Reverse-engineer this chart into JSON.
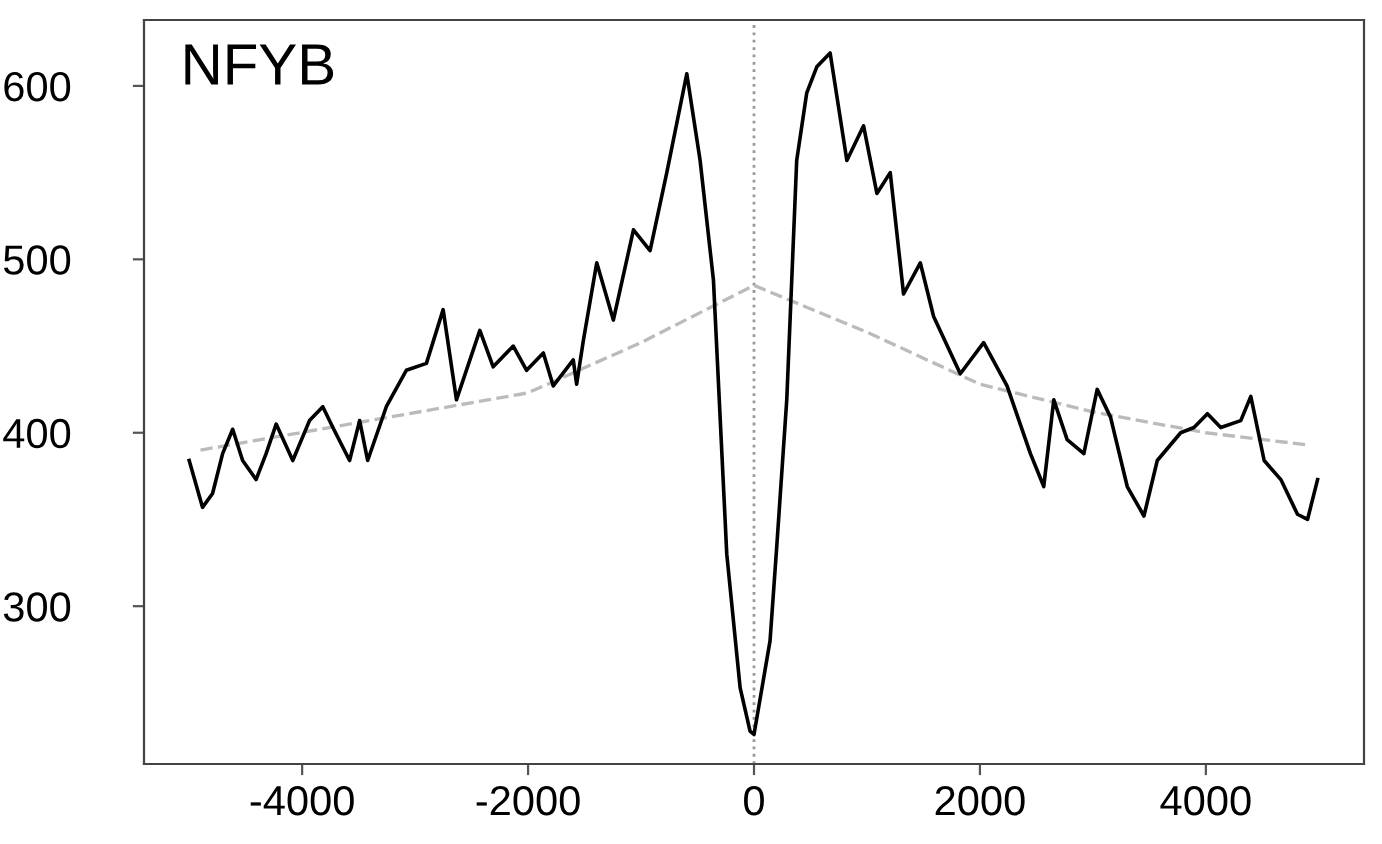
{
  "chart_data": {
    "type": "line",
    "title": "NFYB",
    "series": [
      {
        "color": "#000000",
        "line_style": "solid",
        "x": [
          -5000,
          -4882,
          -4793,
          -4704,
          -4615,
          -4527,
          -4408,
          -4319,
          -4230,
          -4083,
          -3935,
          -3817,
          -3728,
          -3580,
          -3491,
          -3420,
          -3255,
          -3078,
          -2900,
          -2752,
          -2634,
          -2427,
          -2309,
          -2131,
          -2013,
          -1865,
          -1777,
          -1600,
          -1570,
          -1511,
          -1392,
          -1245,
          -1067,
          -920,
          -772,
          -595,
          -477,
          -359,
          -241,
          -123,
          -35,
          0,
          142,
          201,
          290,
          378,
          467,
          556,
          674,
          822,
          970,
          1088,
          1206,
          1324,
          1472,
          1590,
          1826,
          2033,
          2240,
          2447,
          2565,
          2654,
          2772,
          2920,
          3038,
          3156,
          3304,
          3452,
          3570,
          3777,
          3895,
          4014,
          4132,
          4309,
          4398,
          4516,
          4664,
          4811,
          4900,
          4989
        ],
        "values": [
          384,
          357,
          365,
          388,
          402,
          384,
          373,
          388,
          405,
          384,
          407,
          415,
          403,
          384,
          407,
          384,
          415,
          436,
          440,
          471,
          419,
          459,
          438,
          450,
          436,
          446,
          427,
          442,
          428,
          453,
          498,
          465,
          517,
          505,
          550,
          607,
          557,
          488,
          330,
          253,
          228,
          226,
          280,
          334,
          419,
          557,
          596,
          611,
          619,
          557,
          577,
          538,
          550,
          480,
          498,
          467,
          434,
          452,
          427,
          388,
          369,
          419,
          396,
          388,
          425,
          409,
          369,
          352,
          384,
          400,
          403,
          411,
          403,
          407,
          421,
          384,
          373,
          353,
          350,
          373
        ]
      },
      {
        "color": "#bbbbbb",
        "line_style": "dashed",
        "x": [
          -4900,
          -2000,
          -1000,
          0,
          1000,
          2000,
          3000,
          4000,
          4900
        ],
        "values": [
          390,
          423,
          452,
          485,
          458,
          428,
          412,
          400,
          393
        ]
      }
    ],
    "ref_lines": [
      {
        "axis": "x",
        "value": 0,
        "color": "#999999",
        "line_style": "dotted"
      }
    ],
    "xlim": [
      -5400,
      5400
    ],
    "ylim": [
      209,
      638
    ],
    "xticks": [
      -4000,
      -2000,
      0,
      2000,
      4000
    ],
    "yticks": [
      300,
      400,
      500,
      600
    ],
    "grid": false,
    "legend": false
  }
}
